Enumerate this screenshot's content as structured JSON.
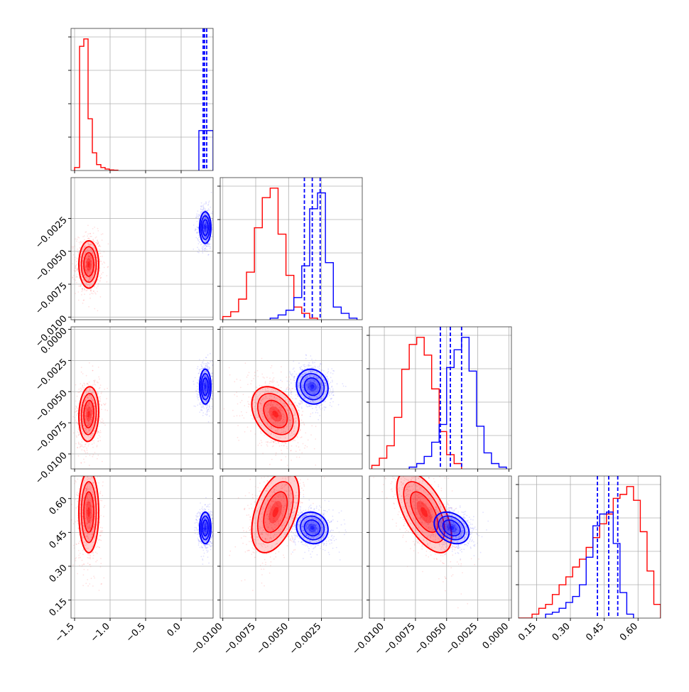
{
  "colors": {
    "series_a": "#ff0000",
    "series_b": "#0000ff",
    "grid": "#b0b0b0",
    "frame": "#000000"
  },
  "chart_data": {
    "type": "corner",
    "parameters": [
      {
        "range": [
          -1.55,
          0.45
        ],
        "ticks": [
          -1.5,
          -1.0,
          -0.5,
          0.0
        ],
        "tick_labels": [
          "−1.5",
          "−1.0",
          "−0.5",
          "0.0"
        ]
      },
      {
        "range": [
          -0.0102,
          0.0006
        ],
        "ticks": [
          -0.01,
          -0.0075,
          -0.005,
          -0.0025
        ],
        "tick_labels": [
          "−0.0100",
          "−0.0075",
          "−0.0050",
          "−0.0025"
        ]
      },
      {
        "range": [
          -0.0112,
          0.0002
        ],
        "ticks": [
          -0.01,
          -0.0075,
          -0.005,
          -0.0025,
          0.0
        ],
        "tick_labels": [
          "−0.0100",
          "−0.0075",
          "−0.0050",
          "−0.0025",
          "0.0000"
        ]
      },
      {
        "range": [
          0.07,
          0.7
        ],
        "ticks": [
          0.15,
          0.3,
          0.45,
          0.6
        ],
        "tick_labels": [
          "0.15",
          "0.30",
          "0.45",
          "0.60"
        ]
      }
    ],
    "series": [
      {
        "color": "#ff0000",
        "mean": [
          -1.3,
          -0.006,
          -0.0068,
          0.54
        ],
        "sd": [
          0.07,
          0.0009,
          0.0011,
          0.09
        ],
        "marginals": [
          {
            "edges": [
              -1.5,
              -1.43,
              -1.37,
              -1.31,
              -1.25,
              -1.19,
              -1.13,
              -1.07,
              -1.01,
              -0.95,
              -0.89
            ],
            "counts": [
              0.02,
              0.84,
              0.89,
              0.35,
              0.12,
              0.04,
              0.02,
              0.01,
              0.004,
              0.002
            ]
          },
          {
            "edges": [
              -0.01,
              -0.0094,
              -0.0088,
              -0.0082,
              -0.0076,
              -0.007,
              -0.0064,
              -0.0058,
              -0.0052,
              -0.0046,
              -0.004,
              -0.0034,
              -0.0028
            ],
            "counts": [
              0.02,
              0.05,
              0.13,
              0.3,
              0.58,
              0.77,
              0.83,
              0.54,
              0.28,
              0.08,
              0.04,
              0.01
            ]
          },
          {
            "edges": [
              -0.011,
              -0.0104,
              -0.0098,
              -0.0092,
              -0.0086,
              -0.008,
              -0.0074,
              -0.0068,
              -0.0062,
              -0.0056,
              -0.005,
              -0.0044,
              -0.0038
            ],
            "counts": [
              0.02,
              0.06,
              0.13,
              0.29,
              0.56,
              0.7,
              0.74,
              0.64,
              0.45,
              0.21,
              0.08,
              0.03
            ]
          },
          {
            "edges": [
              0.07,
              0.1,
              0.13,
              0.16,
              0.19,
              0.22,
              0.25,
              0.28,
              0.31,
              0.34,
              0.37,
              0.4,
              0.43,
              0.46,
              0.49,
              0.52,
              0.55,
              0.58,
              0.61,
              0.64,
              0.67,
              0.7
            ],
            "counts": [
              0.0,
              0.0,
              0.02,
              0.05,
              0.07,
              0.12,
              0.17,
              0.21,
              0.26,
              0.3,
              0.36,
              0.41,
              0.48,
              0.53,
              0.61,
              0.63,
              0.67,
              0.6,
              0.44,
              0.24,
              0.07
            ]
          }
        ]
      },
      {
        "color": "#0000ff",
        "mean": [
          0.34,
          -0.0032,
          -0.0046,
          0.47
        ],
        "sd": [
          0.04,
          0.0006,
          0.0007,
          0.035
        ],
        "quantile_lines": [
          [
            0.31,
            0.33,
            0.36
          ],
          [
            -0.0038,
            -0.0032,
            -0.0026
          ],
          [
            -0.0055,
            -0.0047,
            -0.0038
          ],
          [
            0.42,
            0.47,
            0.51
          ]
        ],
        "marginals": [
          {
            "edges": [
              0.25,
              0.35,
              0.45
            ],
            "counts": [
              0.27,
              0.27
            ]
          },
          {
            "edges": [
              -0.0064,
              -0.0058,
              -0.0052,
              -0.0046,
              -0.004,
              -0.0034,
              -0.0028,
              -0.0022,
              -0.0016,
              -0.001,
              -0.0004,
              0.0002
            ],
            "counts": [
              0.01,
              0.03,
              0.06,
              0.14,
              0.34,
              0.7,
              0.8,
              0.36,
              0.08,
              0.04,
              0.01
            ]
          },
          {
            "edges": [
              -0.008,
              -0.0074,
              -0.0068,
              -0.0062,
              -0.0056,
              -0.005,
              -0.0044,
              -0.0038,
              -0.0032,
              -0.0026,
              -0.002,
              -0.0014,
              -0.0008,
              -0.0002
            ],
            "counts": [
              0.01,
              0.03,
              0.07,
              0.15,
              0.25,
              0.57,
              0.67,
              0.74,
              0.55,
              0.24,
              0.09,
              0.03,
              0.01
            ]
          },
          {
            "edges": [
              0.19,
              0.22,
              0.25,
              0.28,
              0.31,
              0.34,
              0.37,
              0.4,
              0.43,
              0.46,
              0.49,
              0.52,
              0.55,
              0.58
            ],
            "counts": [
              0.02,
              0.03,
              0.05,
              0.08,
              0.11,
              0.17,
              0.31,
              0.47,
              0.53,
              0.54,
              0.38,
              0.13,
              0.02
            ]
          }
        ]
      }
    ],
    "contours": [
      {
        "series": 0,
        "x": 0,
        "y": 1,
        "rho": 0.0
      },
      {
        "series": 1,
        "x": 0,
        "y": 1,
        "rho": 0.0
      },
      {
        "series": 0,
        "x": 0,
        "y": 2,
        "rho": 0.1
      },
      {
        "series": 1,
        "x": 0,
        "y": 2,
        "rho": 0.0
      },
      {
        "series": 0,
        "x": 1,
        "y": 2,
        "rho": -0.35
      },
      {
        "series": 1,
        "x": 1,
        "y": 2,
        "rho": -0.1
      },
      {
        "series": 0,
        "x": 0,
        "y": 3,
        "rho": 0.0
      },
      {
        "series": 1,
        "x": 0,
        "y": 3,
        "rho": 0.0
      },
      {
        "series": 0,
        "x": 1,
        "y": 3,
        "rho": 0.45
      },
      {
        "series": 1,
        "x": 1,
        "y": 3,
        "rho": -0.1
      },
      {
        "series": 0,
        "x": 2,
        "y": 3,
        "rho": -0.6
      },
      {
        "series": 1,
        "x": 2,
        "y": 3,
        "rho": -0.3
      }
    ],
    "grid": true,
    "legend": "none"
  }
}
